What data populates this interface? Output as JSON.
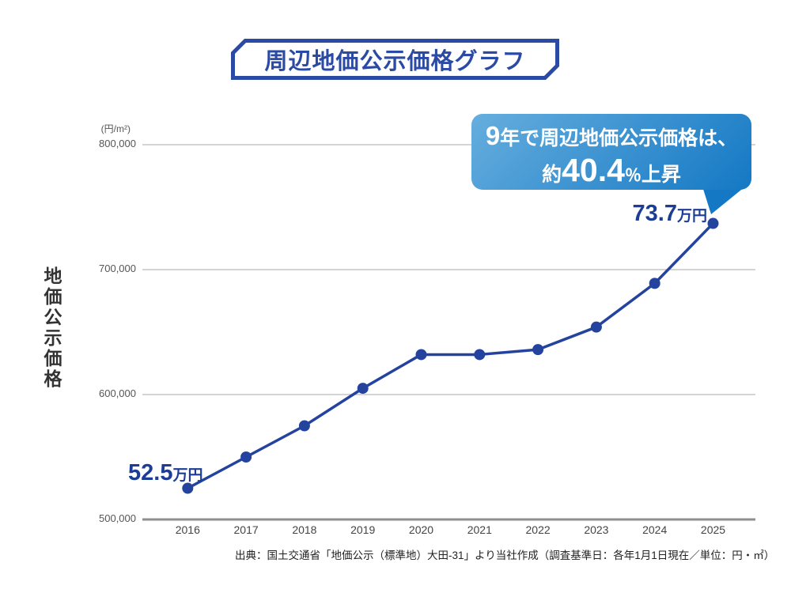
{
  "title": {
    "text": "周辺地価公示価格グラフ"
  },
  "y_axis": {
    "unit": "(円/m²)",
    "title": "地価公示価格",
    "tick_labels": [
      "800,000",
      "700,000",
      "600,000",
      "500,000"
    ]
  },
  "x_axis": {
    "tick_labels": [
      "2016",
      "2017",
      "2018",
      "2019",
      "2020",
      "2021",
      "2022",
      "2023",
      "2024",
      "2025"
    ]
  },
  "callout": {
    "line1_num": "9",
    "line1_text": "年で周辺地価公示価格は、",
    "line2_prefix": "約",
    "line2_value": "40.4",
    "line2_percent": "％",
    "line2_suffix": "上昇"
  },
  "point_labels": {
    "start": {
      "value": "52.5",
      "unit": "万円"
    },
    "end": {
      "value": "73.7",
      "unit": "万円"
    }
  },
  "source": "出典：国土交通省「地価公示（標準地）大田-31」より当社作成（調査基準日：各年1月1日現在／単位：円・㎡）",
  "colors": {
    "line_navy": "#24439f",
    "label_navy": "#1c3d96",
    "title_blue": "#2b4aa3",
    "bubble_gradient_start": "#66aede",
    "bubble_gradient_end": "#1478c4",
    "grid_gray": "#a9a9a9",
    "axis_gray": "#8f8f8f"
  },
  "chart_data": {
    "type": "line",
    "title": "周辺地価公示価格グラフ",
    "x": [
      2016,
      2017,
      2018,
      2019,
      2020,
      2021,
      2022,
      2023,
      2024,
      2025
    ],
    "values": [
      525000,
      550000,
      575000,
      605000,
      632000,
      632000,
      636000,
      654000,
      689000,
      737000
    ],
    "xlabel": "",
    "ylabel": "地価公示価格",
    "y_unit": "円/m²",
    "ylim": [
      500000,
      800000
    ],
    "yticks": [
      800000,
      700000,
      600000,
      500000
    ],
    "grid": true,
    "legend": false,
    "annotations": [
      "9年で周辺地価公示価格は、約40.4％上昇",
      "2016: 52.5万円",
      "2025: 73.7万円"
    ]
  }
}
